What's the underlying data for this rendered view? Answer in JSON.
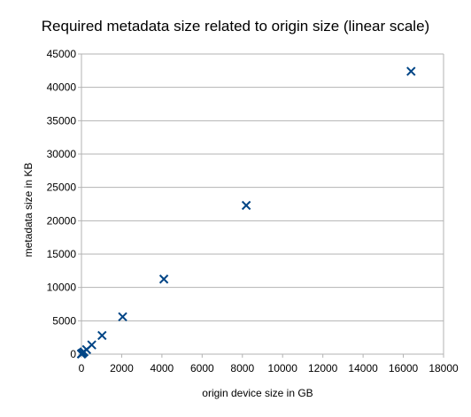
{
  "chart_data": {
    "type": "scatter",
    "title": "Required metadata size related to origin size (linear scale)",
    "xlabel": "origin device size in GB",
    "ylabel": "metadata size in KB",
    "xlim": [
      0,
      18000
    ],
    "ylim": [
      0,
      45000
    ],
    "x_ticks": [
      0,
      2000,
      4000,
      6000,
      8000,
      10000,
      12000,
      14000,
      16000,
      18000
    ],
    "y_ticks": [
      0,
      5000,
      10000,
      15000,
      20000,
      25000,
      30000,
      35000,
      40000,
      45000
    ],
    "grid": "horizontal",
    "legend": "none",
    "marker": "x",
    "color": "#004586",
    "series": [
      {
        "x": [
          1,
          2,
          4,
          8,
          16,
          32,
          64,
          128,
          256,
          512,
          1024,
          2048,
          4096,
          8192,
          16384
        ],
        "y": [
          20,
          30,
          40,
          60,
          80,
          110,
          180,
          340,
          680,
          1380,
          2800,
          5600,
          11250,
          22300,
          42400
        ]
      }
    ]
  }
}
